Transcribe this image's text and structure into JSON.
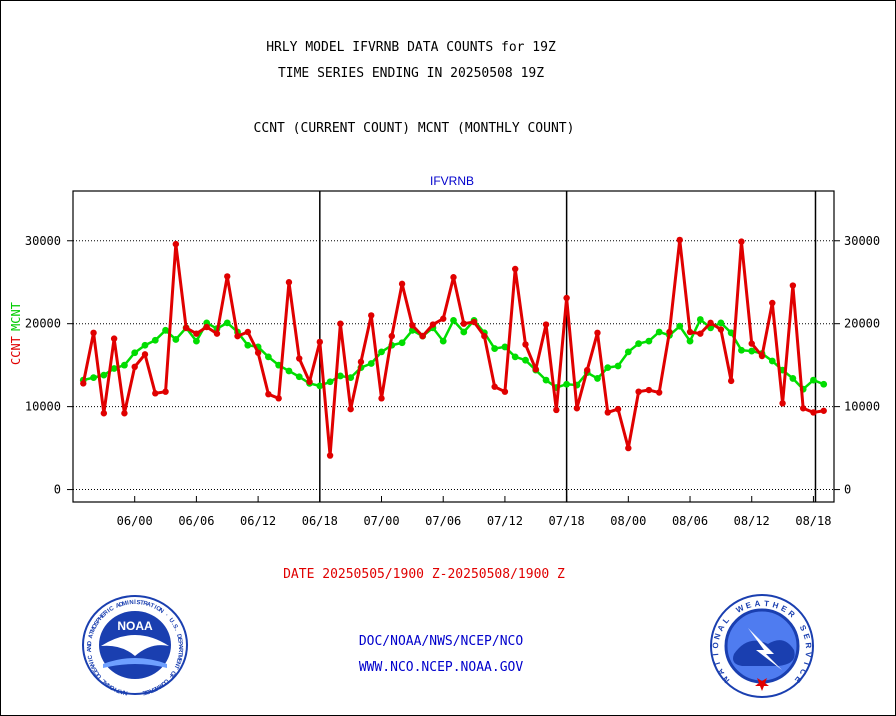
{
  "header": {
    "line1": "HRLY MODEL IFVRNB DATA COUNTS for 19Z",
    "line2": "TIME SERIES ENDING IN 20250508 19Z",
    "line3": "CCNT (CURRENT COUNT) MCNT (MONTHLY COUNT)"
  },
  "footer": {
    "date_range": "DATE 20250505/1900 Z-20250508/1900 Z",
    "org_line": "DOC/NOAA/NWS/NCEP/NCO",
    "url_line": "WWW.NCO.NCEP.NOAA.GOV"
  },
  "logos": {
    "noaa": {
      "center_text": "NOAA",
      "ring_text": "NATIONAL OCEANIC AND ATMOSPHERIC ADMINISTRATION · U.S. DEPARTMENT OF COMMERCE",
      "color": "#1a3fb0"
    },
    "nws": {
      "ring_text": "NATIONAL WEATHER SERVICE",
      "color": "#1a3fb0"
    }
  },
  "chart_data": {
    "type": "line",
    "title": "IFVRNB",
    "ylabel_left_ccnt": "CCNT",
    "ylabel_left_mcnt": "MCNT",
    "ylim": [
      -1500,
      36000
    ],
    "yticks": [
      0,
      10000,
      20000,
      30000
    ],
    "ytick_labels": [
      "0",
      "10000",
      "20000",
      "30000"
    ],
    "xlim": [
      -1,
      73
    ],
    "x_tick_positions": [
      5,
      11,
      17,
      23,
      29,
      35,
      41,
      47,
      53,
      59,
      65,
      71
    ],
    "x_tick_labels": [
      "06/00",
      "06/06",
      "06/12",
      "06/18",
      "07/00",
      "07/06",
      "07/12",
      "07/18",
      "08/00",
      "08/06",
      "08/12",
      "08/18"
    ],
    "day_boundaries": [
      23,
      47,
      71.2
    ],
    "grid": true,
    "colors": {
      "ccnt": "#e00000",
      "mcnt": "#00dd00",
      "title": "#0000cc"
    },
    "series": [
      {
        "name": "CCNT",
        "values": [
          12800,
          18900,
          9200,
          18200,
          9200,
          14800,
          16300,
          11600,
          11800,
          29600,
          19500,
          18800,
          19600,
          18800,
          25700,
          18500,
          19000,
          16500,
          11500,
          11000,
          25000,
          15800,
          13000,
          17800,
          4100,
          20000,
          9700,
          15400,
          21000,
          11000,
          18500,
          24800,
          19800,
          18500,
          19900,
          20600,
          25600,
          20000,
          20200,
          18500,
          12400,
          11800,
          26600,
          17500,
          14500,
          19900,
          9600,
          23100,
          9800,
          14400,
          18900,
          9300,
          9700,
          5000,
          11800,
          12000,
          11700,
          19000,
          30100,
          19000,
          18800,
          20100,
          19300,
          13100,
          29900,
          17600,
          16100,
          22500,
          10400,
          24600,
          9800,
          9300,
          9500
        ]
      },
      {
        "name": "MCNT",
        "values": [
          13200,
          13500,
          13800,
          14600,
          15000,
          16500,
          17400,
          18000,
          19200,
          18100,
          19500,
          17900,
          20100,
          19400,
          20100,
          19000,
          17400,
          17200,
          16000,
          15000,
          14300,
          13600,
          12800,
          12500,
          13000,
          13700,
          13500,
          14700,
          15200,
          16600,
          17400,
          17700,
          19200,
          18500,
          19500,
          17900,
          20400,
          19000,
          20400,
          18900,
          17000,
          17200,
          16000,
          15600,
          14400,
          13200,
          12300,
          12700,
          12600,
          14100,
          13400,
          14700,
          14900,
          16600,
          17600,
          17900,
          19000,
          18600,
          19700,
          17900,
          20500,
          19500,
          20100,
          18900,
          16800,
          16700,
          16400,
          15500,
          14400,
          13400,
          12100,
          13200,
          12700
        ]
      }
    ]
  }
}
